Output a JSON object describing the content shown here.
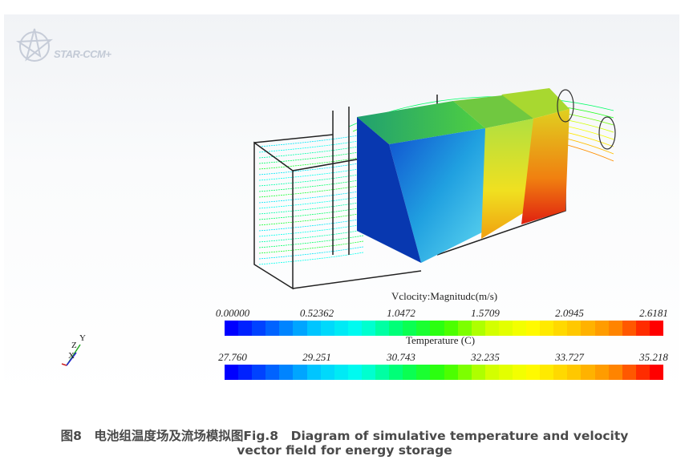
{
  "figure": {
    "logo_text": "STAR-CCM+",
    "axes_triad": {
      "y": "Y",
      "z": "Z",
      "x": "X"
    },
    "colormap": [
      "#0000ff",
      "#0066ff",
      "#00ccff",
      "#00ffee",
      "#00ff66",
      "#33ff00",
      "#ccff00",
      "#ffff00",
      "#ffcc00",
      "#ff8800",
      "#ff0000"
    ],
    "velocity_legend": {
      "title": "Vclocity:Magnitudc(m/s)",
      "ticks": [
        "0.00000",
        "0.52362",
        "1.0472",
        "1.5709",
        "2.0945",
        "2.6181"
      ],
      "range": [
        0.0,
        2.6181
      ]
    },
    "temperature_legend": {
      "title": "Temperature (C)",
      "ticks": [
        "27.760",
        "29.251",
        "30.743",
        "32.235",
        "33.727",
        "35.218"
      ],
      "range": [
        27.76,
        35.218
      ]
    }
  },
  "caption": {
    "line1": "图8　电池组温度场及流场模拟图Fig.8　Diagram of simulative temperature and velocity",
    "line2": "vector field for energy storage"
  }
}
